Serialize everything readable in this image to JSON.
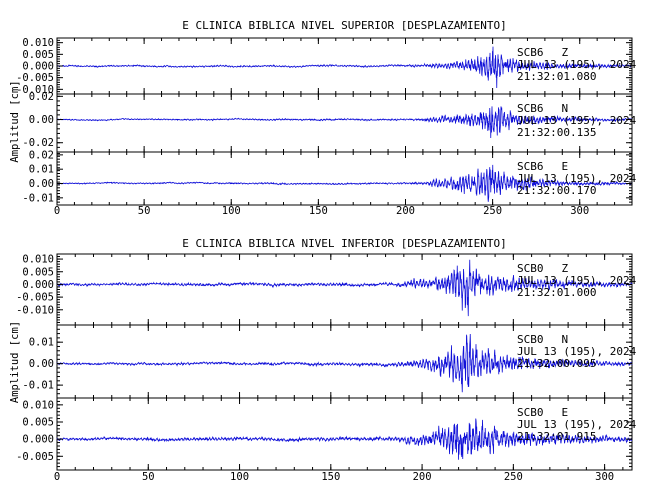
{
  "chart_data": [
    {
      "type": "line",
      "title": "E CLINICA BIBLICA NIVEL SUPERIOR [DESPLAZAMIENTO]",
      "ylabel": "Amplitud [cm]",
      "xlabel": "",
      "xlim": [
        0,
        330
      ],
      "x_ticks": [
        "0",
        "50",
        "100",
        "150",
        "200",
        "250",
        "300"
      ],
      "x_tick_values": [
        0,
        50,
        100,
        150,
        200,
        250,
        300
      ],
      "color": "#1010d8",
      "panels": [
        {
          "station": "SCB6",
          "component": "Z",
          "date": "JUL 13 (195), 2024",
          "time": "21:32:01.080",
          "ylim": [
            -0.012,
            0.012
          ],
          "y_ticks": [
            "0.010",
            "0.005",
            "0.000",
            "-0.005",
            "-0.010"
          ],
          "y_tick_values": [
            0.01,
            0.005,
            0.0,
            -0.005,
            -0.01
          ],
          "baseline": 0.0,
          "noise": 0.00035,
          "envelope": [
            [
              0,
              0.0003
            ],
            [
              200,
              0.0004
            ],
            [
              212,
              0.0007
            ],
            [
              222,
              0.0014
            ],
            [
              232,
              0.0025
            ],
            [
              240,
              0.004
            ],
            [
              245,
              0.006
            ],
            [
              248,
              0.0085
            ],
            [
              251,
              0.0112
            ],
            [
              254,
              0.007
            ],
            [
              258,
              0.0045
            ],
            [
              265,
              0.003
            ],
            [
              275,
              0.002
            ],
            [
              290,
              0.0013
            ],
            [
              310,
              0.0008
            ],
            [
              330,
              0.0006
            ]
          ]
        },
        {
          "station": "SCB6",
          "component": "N",
          "date": "JUL 13 (195), 2024",
          "time": "21:32:00.135",
          "ylim": [
            -0.028,
            0.022
          ],
          "y_ticks": [
            "0.02",
            "0.00",
            "-0.02"
          ],
          "y_tick_values": [
            0.02,
            0.0,
            -0.02
          ],
          "baseline": 0.0,
          "noise": 0.0007,
          "envelope": [
            [
              0,
              0.0005
            ],
            [
              200,
              0.0008
            ],
            [
              212,
              0.0015
            ],
            [
              215,
              0.003
            ],
            [
              225,
              0.0045
            ],
            [
              235,
              0.007
            ],
            [
              242,
              0.011
            ],
            [
              247,
              0.016
            ],
            [
              250,
              0.019
            ],
            [
              254,
              0.015
            ],
            [
              258,
              0.01
            ],
            [
              265,
              0.007
            ],
            [
              275,
              0.004
            ],
            [
              290,
              0.0025
            ],
            [
              310,
              0.0015
            ],
            [
              330,
              0.001
            ]
          ]
        },
        {
          "station": "SCB6",
          "component": "E",
          "date": "JUL 13 (195), 2024",
          "time": "21:32:00.170",
          "ylim": [
            -0.015,
            0.022
          ],
          "y_ticks": [
            "0.02",
            "0.01",
            "0.00",
            "-0.01"
          ],
          "y_tick_values": [
            0.02,
            0.01,
            0.0,
            -0.01
          ],
          "baseline": 0.0,
          "noise": 0.0005,
          "envelope": [
            [
              0,
              0.0004
            ],
            [
              200,
              0.0006
            ],
            [
              212,
              0.001
            ],
            [
              215,
              0.003
            ],
            [
              225,
              0.005
            ],
            [
              232,
              0.008
            ],
            [
              240,
              0.012
            ],
            [
              245,
              0.015
            ],
            [
              248,
              0.017
            ],
            [
              252,
              0.014
            ],
            [
              258,
              0.009
            ],
            [
              265,
              0.006
            ],
            [
              275,
              0.0035
            ],
            [
              290,
              0.002
            ],
            [
              310,
              0.0012
            ],
            [
              330,
              0.0008
            ]
          ]
        }
      ]
    },
    {
      "type": "line",
      "title": "E CLINICA BIBLICA NIVEL INFERIOR [DESPLAZAMIENTO]",
      "ylabel": "Amplitud [cm]",
      "xlabel": "",
      "xlim": [
        0,
        315
      ],
      "x_ticks": [
        "0",
        "50",
        "100",
        "150",
        "200",
        "250",
        "300"
      ],
      "x_tick_values": [
        0,
        50,
        100,
        150,
        200,
        250,
        300
      ],
      "color": "#1010d8",
      "panels": [
        {
          "station": "SCB0",
          "component": "Z",
          "date": "JUL 13 (195), 2024",
          "time": "21:32:01.000",
          "ylim": [
            -0.016,
            0.012
          ],
          "y_ticks": [
            "0.010",
            "0.005",
            "0.000",
            "-0.005",
            "-0.010"
          ],
          "y_tick_values": [
            0.01,
            0.005,
            0.0,
            -0.005,
            -0.01
          ],
          "baseline": 0.0,
          "noise": 0.0005,
          "envelope": [
            [
              0,
              0.0005
            ],
            [
              180,
              0.0006
            ],
            [
              188,
              0.001
            ],
            [
              195,
              0.0018
            ],
            [
              205,
              0.0028
            ],
            [
              212,
              0.004
            ],
            [
              218,
              0.007
            ],
            [
              222,
              0.0105
            ],
            [
              225,
              0.014
            ],
            [
              228,
              0.009
            ],
            [
              235,
              0.006
            ],
            [
              245,
              0.004
            ],
            [
              260,
              0.0028
            ],
            [
              280,
              0.0018
            ],
            [
              300,
              0.0012
            ],
            [
              315,
              0.0008
            ]
          ]
        },
        {
          "station": "SCB0",
          "component": "N",
          "date": "JUL 13 (195), 2024",
          "time": "21:32:00.095",
          "ylim": [
            -0.016,
            0.018
          ],
          "y_ticks": [
            "0.01",
            "0.00",
            "-0.01"
          ],
          "y_tick_values": [
            0.01,
            0.0,
            -0.01
          ],
          "baseline": 0.0,
          "noise": 0.0006,
          "envelope": [
            [
              0,
              0.0005
            ],
            [
              180,
              0.0007
            ],
            [
              188,
              0.0012
            ],
            [
              195,
              0.002
            ],
            [
              205,
              0.0035
            ],
            [
              212,
              0.006
            ],
            [
              218,
              0.01
            ],
            [
              222,
              0.014
            ],
            [
              225,
              0.016
            ],
            [
              228,
              0.012
            ],
            [
              235,
              0.008
            ],
            [
              245,
              0.005
            ],
            [
              260,
              0.0032
            ],
            [
              280,
              0.002
            ],
            [
              300,
              0.0013
            ],
            [
              315,
              0.0009
            ]
          ]
        },
        {
          "station": "SCB0",
          "component": "E",
          "date": "JUL 13 (195), 2024",
          "time": "21:32:01.915",
          "ylim": [
            -0.009,
            0.012
          ],
          "y_ticks": [
            "0.010",
            "0.005",
            "0.000",
            "-0.005"
          ],
          "y_tick_values": [
            0.01,
            0.005,
            0.0,
            -0.005
          ],
          "baseline": 0.0,
          "noise": 0.0004,
          "envelope": [
            [
              0,
              0.0004
            ],
            [
              180,
              0.0006
            ],
            [
              188,
              0.001
            ],
            [
              195,
              0.0016
            ],
            [
              205,
              0.0025
            ],
            [
              212,
              0.004
            ],
            [
              217,
              0.0065
            ],
            [
              220,
              0.0095
            ],
            [
              223,
              0.008
            ],
            [
              228,
              0.0065
            ],
            [
              235,
              0.005
            ],
            [
              245,
              0.0035
            ],
            [
              260,
              0.0025
            ],
            [
              280,
              0.0016
            ],
            [
              300,
              0.0011
            ],
            [
              315,
              0.0008
            ]
          ]
        }
      ]
    }
  ]
}
